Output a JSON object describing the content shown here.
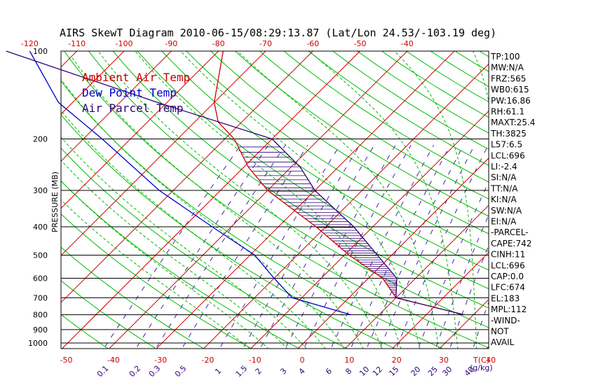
{
  "title": "AIRS SkewT Diagram 2010-06-15/08:29:13.87 (Lat/Lon 24.53/-103.19 deg)",
  "colors": {
    "ambient": "#cc0000",
    "dewpoint": "#0000cc",
    "parcel": "#330077",
    "isotherm": "#cc0000",
    "dry_adiabat": "#00bb00",
    "moist_adiabat": "#00bb00",
    "mixing_ratio": "#4422aa",
    "isobar": "#000000",
    "top_ticks": "#cc0000",
    "bottom_ticks": "#cc0000",
    "mixing_labels": "#330077"
  },
  "chart_data": {
    "type": "line",
    "title": "AIRS SkewT Diagram 2010-06-15/08:29:13.87 (Lat/Lon 24.53/-103.19 deg)",
    "ylabel": "PRESSURE (MB)",
    "xlabel": "T(C)",
    "mixing_ratio_unit": "(g/kg)",
    "pressure_levels": [
      100,
      200,
      300,
      400,
      500,
      600,
      700,
      800,
      900,
      1000
    ],
    "pressure_tick_labels": [
      "100",
      "200",
      "300",
      "400",
      "500",
      "600",
      "700",
      "800",
      "900",
      "1000"
    ],
    "top_temp_ticks": [
      -120,
      -110,
      -100,
      -90,
      -80,
      -70,
      -60,
      -50,
      -40
    ],
    "bottom_temp_ticks": [
      -50,
      -40,
      -30,
      -20,
      -10,
      0,
      10,
      20,
      30,
      40
    ],
    "mixing_ratio_ticks": [
      "0.1",
      "0.2",
      "0.3",
      "0.5",
      "1",
      "1.5",
      "2",
      "3",
      "4",
      "6",
      "8",
      "10",
      "12",
      "15",
      "20",
      "25",
      "30",
      "40"
    ],
    "legend": [
      "Ambient Air Temp",
      "Dew Point Temp",
      "Air Parcel Temp"
    ],
    "series": [
      {
        "name": "Ambient Air Temp",
        "points": [
          {
            "p": 100,
            "t": -79
          },
          {
            "p": 150,
            "t": -70
          },
          {
            "p": 175,
            "t": -65
          },
          {
            "p": 200,
            "t": -58
          },
          {
            "p": 250,
            "t": -49
          },
          {
            "p": 300,
            "t": -40
          },
          {
            "p": 400,
            "t": -22
          },
          {
            "p": 500,
            "t": -9
          },
          {
            "p": 600,
            "t": 3
          },
          {
            "p": 700,
            "t": 10
          },
          {
            "p": 800,
            "t": 28
          }
        ]
      },
      {
        "name": "Dew Point Temp",
        "points": [
          {
            "p": 100,
            "t": -120
          },
          {
            "p": 150,
            "t": -103
          },
          {
            "p": 200,
            "t": -86
          },
          {
            "p": 300,
            "t": -63
          },
          {
            "p": 400,
            "t": -44
          },
          {
            "p": 500,
            "t": -29
          },
          {
            "p": 600,
            "t": -20
          },
          {
            "p": 700,
            "t": -12
          },
          {
            "p": 800,
            "t": 4
          }
        ]
      },
      {
        "name": "Air Parcel Temp",
        "points": [
          {
            "p": 100,
            "t": -125
          },
          {
            "p": 150,
            "t": -82
          },
          {
            "p": 200,
            "t": -50
          },
          {
            "p": 250,
            "t": -38
          },
          {
            "p": 300,
            "t": -30
          },
          {
            "p": 400,
            "t": -14
          },
          {
            "p": 500,
            "t": -3
          },
          {
            "p": 600,
            "t": 6
          },
          {
            "p": 700,
            "t": 10
          },
          {
            "p": 800,
            "t": 28
          }
        ]
      }
    ],
    "indices": [
      "TP:100",
      "MW:N/A",
      "FRZ:565",
      "WB0:615",
      "PW:16.86",
      "RH:61.1",
      "MAXT:25.4",
      "TH:3825",
      "L57:6.5",
      "LCL:696",
      "LI:-2.4",
      "SI:N/A",
      "TT:N/A",
      "KI:N/A",
      "SW:N/A",
      "EI:N/A",
      "-PARCEL-",
      "CAPE:742",
      "CINH:11",
      "LCL:696",
      "CAP:0.0",
      "LFC:674",
      "EL:183",
      "MPL:112",
      "-WIND-",
      "NOT",
      "AVAIL"
    ]
  }
}
